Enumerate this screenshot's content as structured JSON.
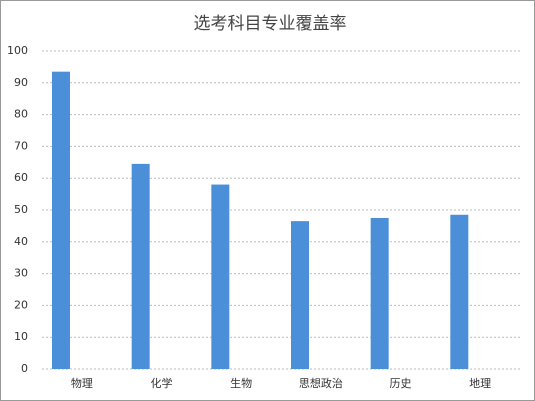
{
  "chart_data": {
    "type": "bar",
    "title": "选考科目专业覆盖率",
    "categories": [
      "物理",
      "化学",
      "生物",
      "思想政治",
      "历史",
      "地理"
    ],
    "values": [
      93.5,
      64.5,
      58,
      46.5,
      47.5,
      48.5
    ],
    "color": "#4a8fd8",
    "ylim": [
      0,
      100
    ],
    "yticks": [
      0,
      10,
      20,
      30,
      40,
      50,
      60,
      70,
      80,
      90,
      100
    ],
    "grid": true
  }
}
